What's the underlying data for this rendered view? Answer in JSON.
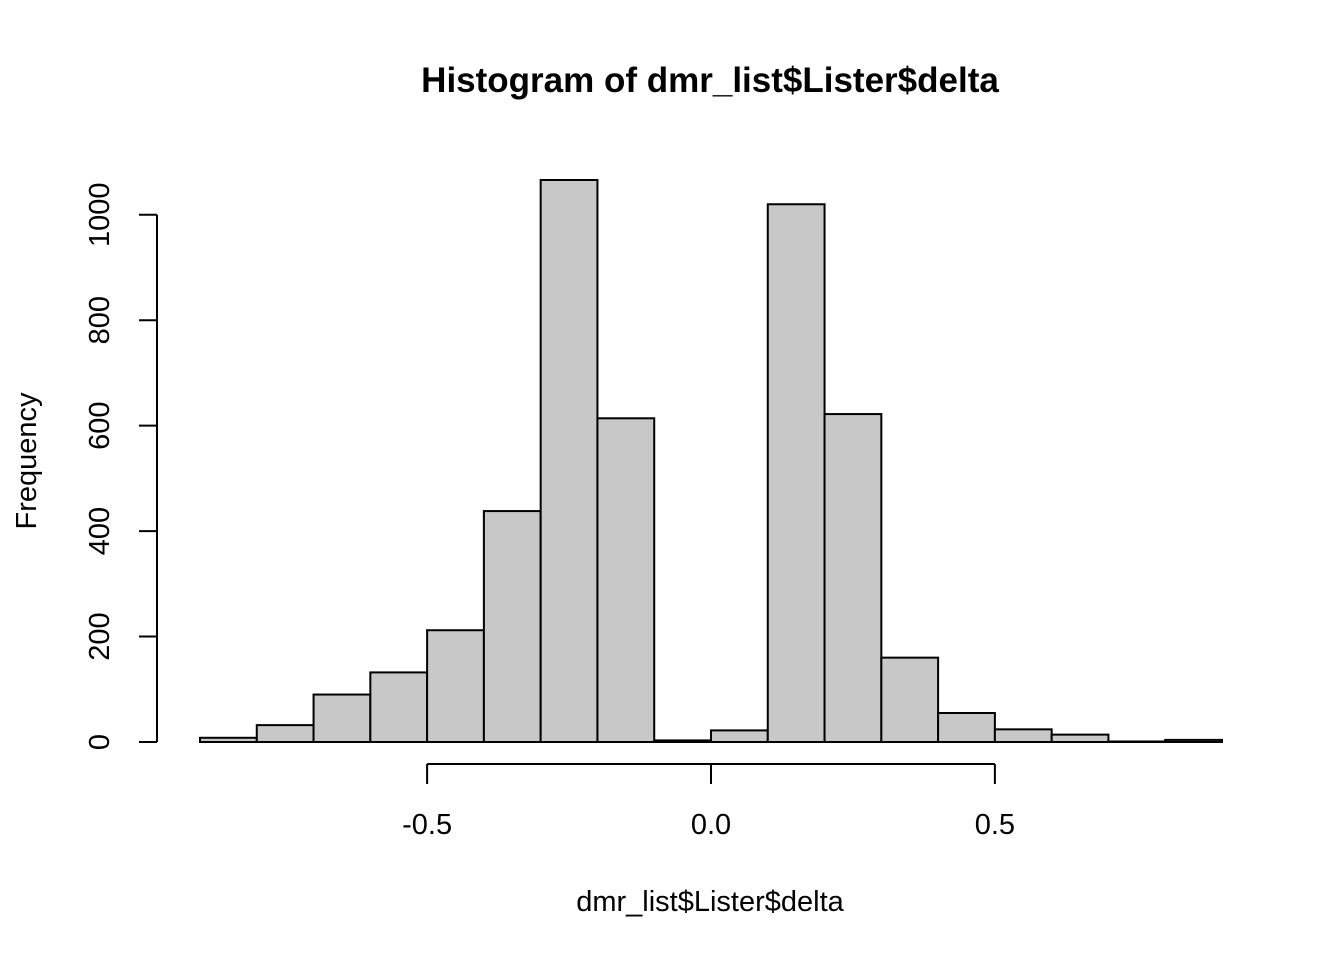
{
  "chart_data": {
    "type": "bar",
    "subtype": "histogram",
    "title": "Histogram of dmr_list$Lister$delta",
    "xlabel": "dmr_list$Lister$delta",
    "ylabel": "Frequency",
    "bar_color": "#c8c8c8",
    "bins": [
      {
        "start": -0.9,
        "end": -0.8,
        "count": 8
      },
      {
        "start": -0.8,
        "end": -0.7,
        "count": 32
      },
      {
        "start": -0.7,
        "end": -0.6,
        "count": 90
      },
      {
        "start": -0.6,
        "end": -0.5,
        "count": 132
      },
      {
        "start": -0.5,
        "end": -0.4,
        "count": 212
      },
      {
        "start": -0.4,
        "end": -0.3,
        "count": 438
      },
      {
        "start": -0.3,
        "end": -0.2,
        "count": 1066
      },
      {
        "start": -0.2,
        "end": -0.1,
        "count": 614
      },
      {
        "start": -0.1,
        "end": 0.0,
        "count": 3
      },
      {
        "start": 0.0,
        "end": 0.1,
        "count": 22
      },
      {
        "start": 0.1,
        "end": 0.2,
        "count": 1020
      },
      {
        "start": 0.2,
        "end": 0.3,
        "count": 622
      },
      {
        "start": 0.3,
        "end": 0.4,
        "count": 160
      },
      {
        "start": 0.4,
        "end": 0.5,
        "count": 55
      },
      {
        "start": 0.5,
        "end": 0.6,
        "count": 24
      },
      {
        "start": 0.6,
        "end": 0.7,
        "count": 14
      },
      {
        "start": 0.7,
        "end": 0.8,
        "count": 1
      },
      {
        "start": 0.8,
        "end": 0.9,
        "count": 4
      }
    ],
    "xlim": [
      -0.9,
      0.9
    ],
    "ylim": [
      0,
      1066
    ],
    "x_ticks": [
      -0.5,
      0.0,
      0.5
    ],
    "x_tick_labels": [
      "-0.5",
      "0.0",
      "0.5"
    ],
    "y_ticks": [
      0,
      200,
      400,
      600,
      800,
      1000
    ],
    "y_tick_labels": [
      "0",
      "200",
      "400",
      "600",
      "800",
      "1000"
    ],
    "grid": false
  }
}
